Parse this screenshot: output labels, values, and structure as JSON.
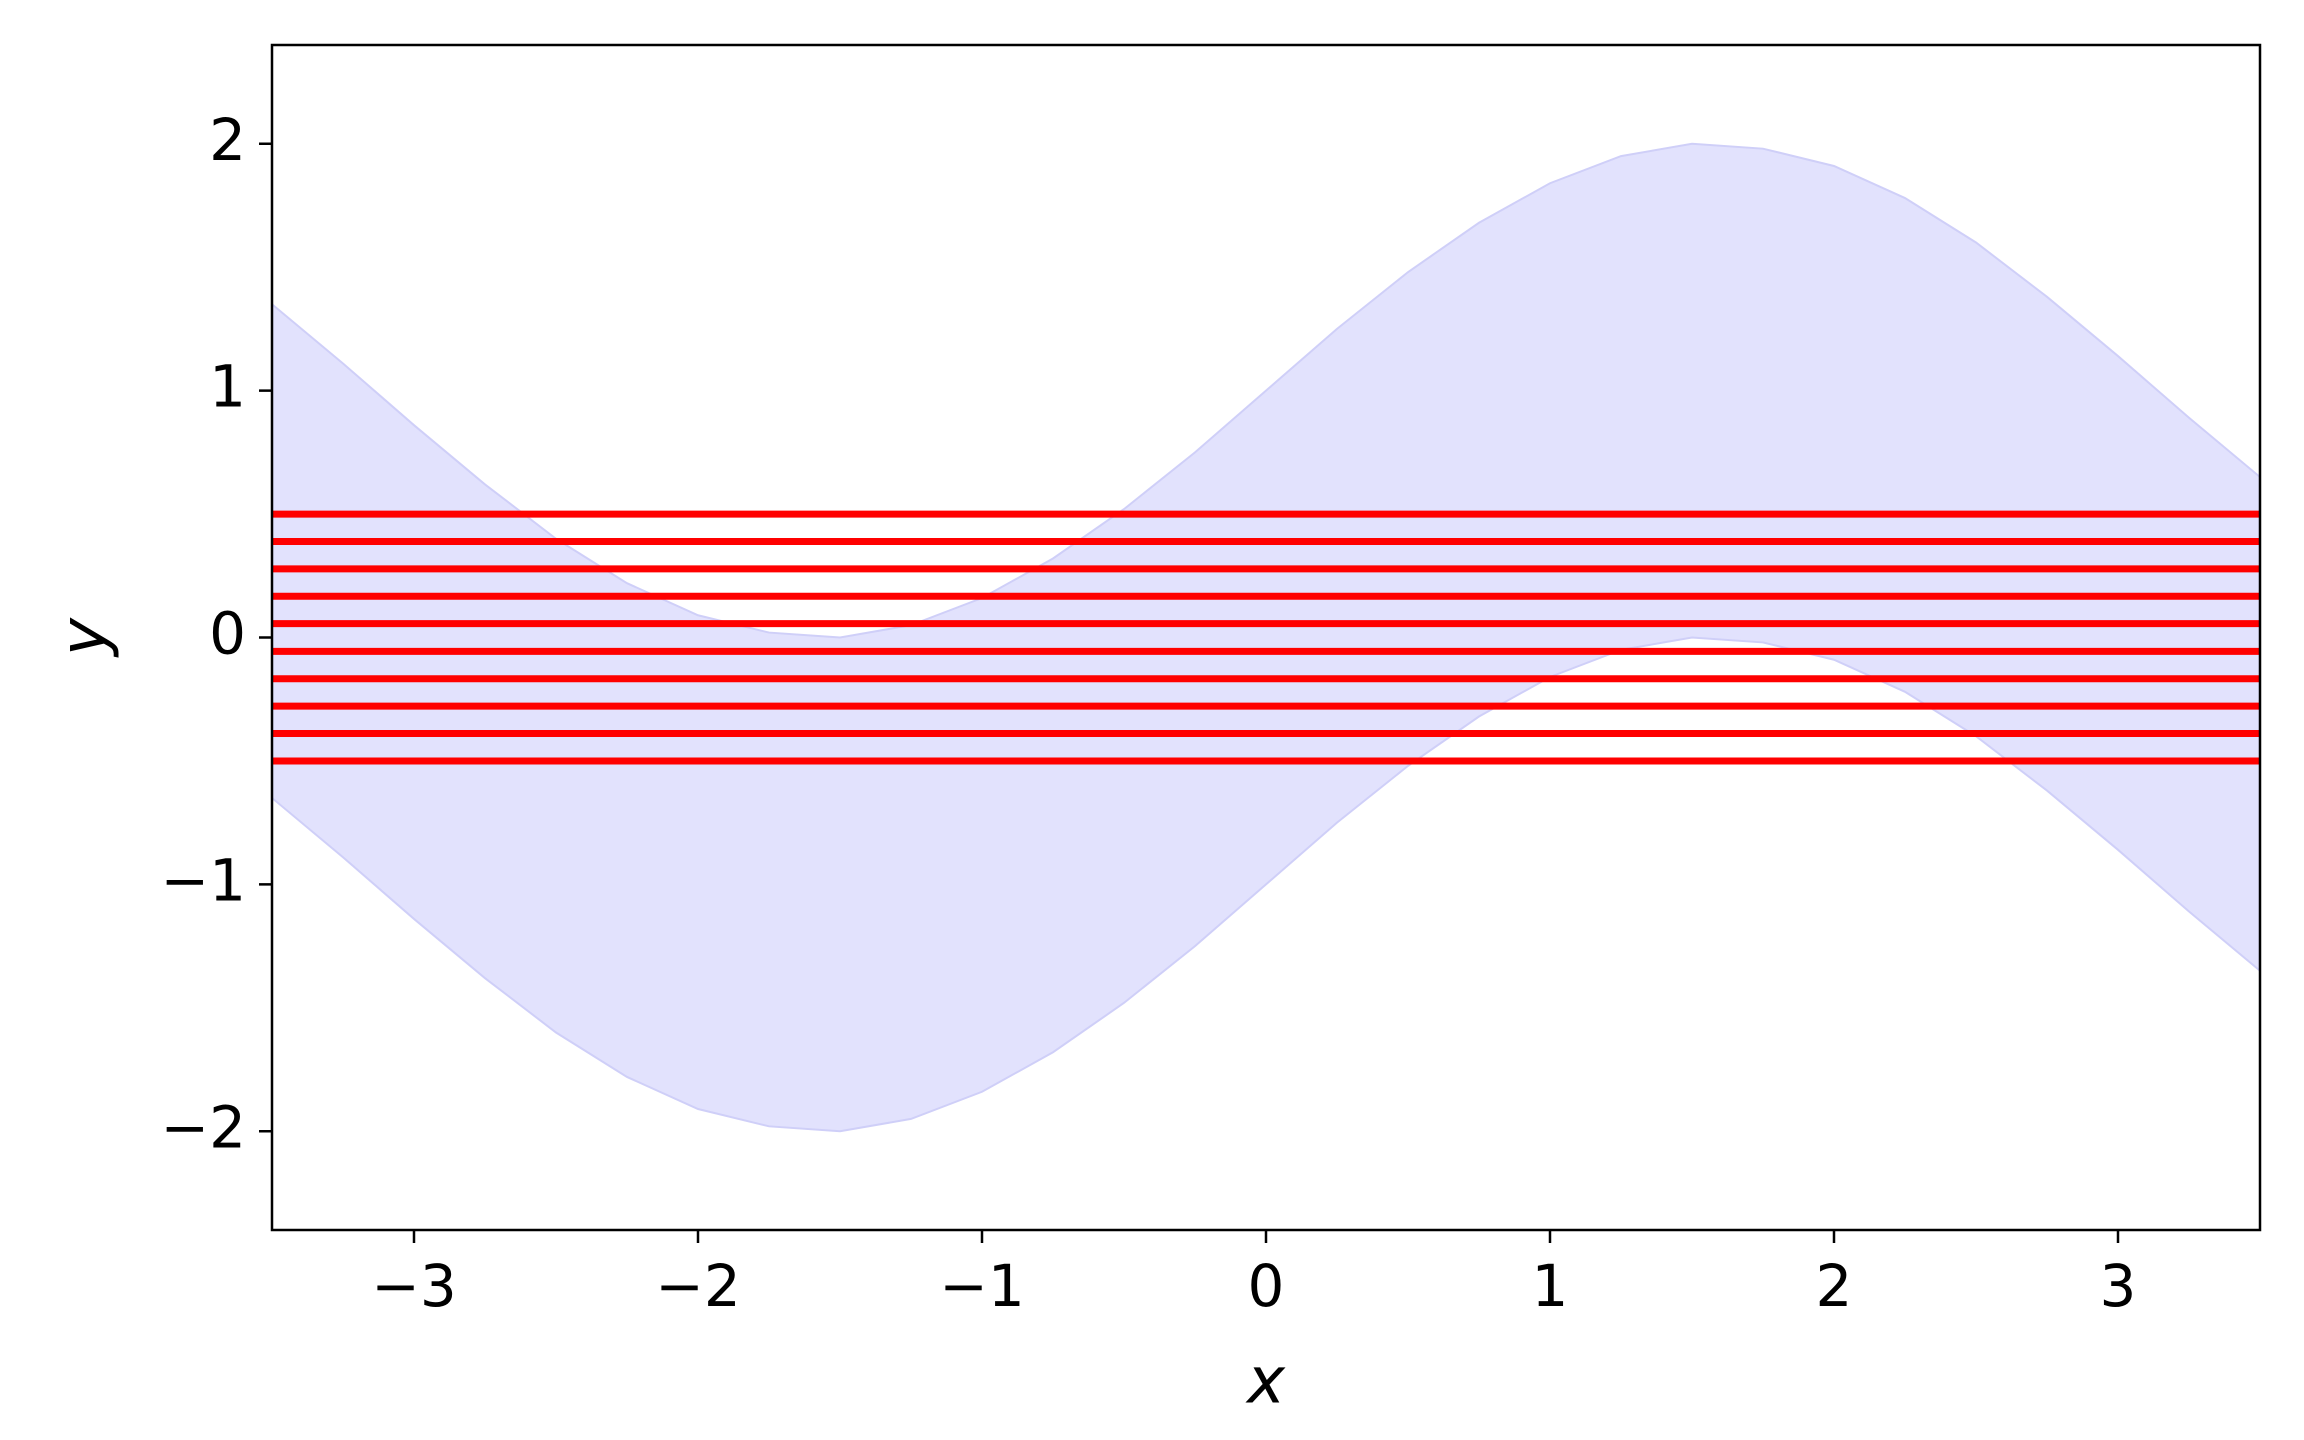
{
  "chart_data": {
    "type": "area",
    "x_label": "x",
    "y_label": "y",
    "xlim": [
      -3.5,
      3.5
    ],
    "ylim": [
      -2.4,
      2.4
    ],
    "xticks": [
      {
        "value": -3,
        "label": "−3"
      },
      {
        "value": -2,
        "label": "−2"
      },
      {
        "value": -1,
        "label": "−1"
      },
      0,
      1,
      2,
      3
    ],
    "yticks": [
      {
        "value": -2,
        "label": "−2"
      },
      {
        "value": -1,
        "label": "−1"
      },
      0,
      1,
      2
    ],
    "band": {
      "color": "#e2e2fd",
      "edge_color": "#cfcff8",
      "x": [
        -3.5,
        -3.25,
        -3.0,
        -2.75,
        -2.5,
        -2.25,
        -2.0,
        -1.75,
        -1.5,
        -1.25,
        -1.0,
        -0.75,
        -0.5,
        -0.25,
        0,
        0.25,
        0.5,
        0.75,
        1.0,
        1.25,
        1.5,
        1.75,
        2.0,
        2.25,
        2.5,
        2.75,
        3.0,
        3.25,
        3.5
      ],
      "upper": [
        1.35,
        1.11,
        0.86,
        0.62,
        0.4,
        0.22,
        0.09,
        0.02,
        0.0,
        0.05,
        0.16,
        0.32,
        0.52,
        0.75,
        1.0,
        1.25,
        1.48,
        1.68,
        1.84,
        1.95,
        2.0,
        1.98,
        1.91,
        1.78,
        1.6,
        1.38,
        1.14,
        0.89,
        0.65
      ],
      "lower": [
        -0.65,
        -0.89,
        -1.14,
        -1.38,
        -1.6,
        -1.78,
        -1.91,
        -1.98,
        -2.0,
        -1.95,
        -1.84,
        -1.68,
        -1.48,
        -1.25,
        -1.0,
        -0.75,
        -0.52,
        -0.32,
        -0.16,
        -0.05,
        0.0,
        -0.02,
        -0.09,
        -0.22,
        -0.4,
        -0.62,
        -0.86,
        -1.11,
        -1.35
      ]
    },
    "hlines": {
      "color": "#ff0000",
      "values": [
        -0.5,
        -0.389,
        -0.278,
        -0.167,
        -0.056,
        0.056,
        0.167,
        0.278,
        0.389,
        0.5
      ]
    }
  }
}
